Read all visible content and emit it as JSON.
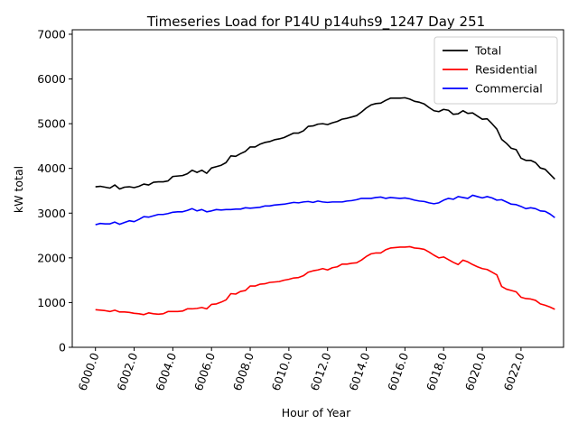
{
  "chart_data": {
    "type": "line",
    "title": "Timeseries Load for P14U p14uhs9_1247  Day 251",
    "xlabel": "Hour of Year",
    "ylabel": "kW total",
    "xlim": [
      5998.8,
      6024.2
    ],
    "ylim": [
      0,
      7100
    ],
    "x_ticks": [
      6000,
      6002,
      6004,
      6006,
      6008,
      6010,
      6012,
      6014,
      6016,
      6018,
      6020,
      6022
    ],
    "x_tick_labels": [
      "6000.0",
      "6002.0",
      "6004.0",
      "6006.0",
      "6008.0",
      "6010.0",
      "6012.0",
      "6014.0",
      "6016.0",
      "6018.0",
      "6020.0",
      "6022.0"
    ],
    "y_ticks": [
      0,
      1000,
      2000,
      3000,
      4000,
      5000,
      6000,
      7000
    ],
    "y_tick_labels": [
      "0",
      "1000",
      "2000",
      "3000",
      "4000",
      "5000",
      "6000",
      "7000"
    ],
    "grid": false,
    "legend_position": "top-right",
    "x": [
      6000.0,
      6000.25,
      6000.5,
      6000.75,
      6001.0,
      6001.25,
      6001.5,
      6001.75,
      6002.0,
      6002.25,
      6002.5,
      6002.75,
      6003.0,
      6003.25,
      6003.5,
      6003.75,
      6004.0,
      6004.25,
      6004.5,
      6004.75,
      6005.0,
      6005.25,
      6005.5,
      6005.75,
      6006.0,
      6006.25,
      6006.5,
      6006.75,
      6007.0,
      6007.25,
      6007.5,
      6007.75,
      6008.0,
      6008.25,
      6008.5,
      6008.75,
      6009.0,
      6009.25,
      6009.5,
      6009.75,
      6010.0,
      6010.25,
      6010.5,
      6010.75,
      6011.0,
      6011.25,
      6011.5,
      6011.75,
      6012.0,
      6012.25,
      6012.5,
      6012.75,
      6013.0,
      6013.25,
      6013.5,
      6013.75,
      6014.0,
      6014.25,
      6014.5,
      6014.75,
      6015.0,
      6015.25,
      6015.5,
      6015.75,
      6016.0,
      6016.25,
      6016.5,
      6016.75,
      6017.0,
      6017.25,
      6017.5,
      6017.75,
      6018.0,
      6018.25,
      6018.5,
      6018.75,
      6019.0,
      6019.25,
      6019.5,
      6019.75,
      6020.0,
      6020.25,
      6020.5,
      6020.75,
      6021.0,
      6021.25,
      6021.5,
      6021.75,
      6022.0,
      6022.25,
      6022.5,
      6022.75,
      6023.0,
      6023.25,
      6023.5,
      6023.75
    ],
    "series": [
      {
        "name": "Total",
        "color": "#000000",
        "values": [
          3590,
          3600,
          3580,
          3560,
          3630,
          3540,
          3580,
          3590,
          3570,
          3600,
          3650,
          3630,
          3690,
          3700,
          3700,
          3720,
          3820,
          3830,
          3840,
          3880,
          3960,
          3910,
          3960,
          3890,
          4010,
          4040,
          4070,
          4130,
          4280,
          4270,
          4330,
          4380,
          4480,
          4480,
          4540,
          4580,
          4600,
          4640,
          4660,
          4690,
          4740,
          4790,
          4790,
          4840,
          4940,
          4950,
          4990,
          5000,
          4980,
          5020,
          5050,
          5100,
          5120,
          5150,
          5180,
          5260,
          5350,
          5420,
          5450,
          5460,
          5520,
          5570,
          5570,
          5570,
          5580,
          5550,
          5500,
          5480,
          5440,
          5360,
          5290,
          5270,
          5320,
          5300,
          5210,
          5220,
          5290,
          5230,
          5240,
          5170,
          5100,
          5110,
          5000,
          4880,
          4650,
          4560,
          4450,
          4420,
          4230,
          4180,
          4180,
          4130,
          4010,
          3980,
          3870,
          3760
        ]
      },
      {
        "name": "Residential",
        "color": "#ff0000",
        "values": [
          840,
          830,
          820,
          800,
          830,
          790,
          790,
          780,
          760,
          750,
          730,
          770,
          750,
          740,
          750,
          800,
          800,
          800,
          810,
          860,
          860,
          870,
          890,
          860,
          960,
          970,
          1010,
          1060,
          1200,
          1190,
          1250,
          1270,
          1370,
          1370,
          1410,
          1420,
          1450,
          1460,
          1470,
          1500,
          1520,
          1550,
          1560,
          1600,
          1680,
          1710,
          1730,
          1760,
          1730,
          1780,
          1800,
          1860,
          1860,
          1880,
          1890,
          1950,
          2030,
          2090,
          2110,
          2110,
          2180,
          2220,
          2230,
          2240,
          2240,
          2250,
          2220,
          2210,
          2190,
          2130,
          2060,
          2000,
          2020,
          1960,
          1900,
          1850,
          1950,
          1910,
          1850,
          1800,
          1760,
          1740,
          1680,
          1620,
          1360,
          1300,
          1270,
          1240,
          1120,
          1090,
          1080,
          1050,
          970,
          940,
          900,
          850
        ]
      },
      {
        "name": "Commercial",
        "color": "#0000ff",
        "values": [
          2740,
          2770,
          2760,
          2760,
          2800,
          2750,
          2790,
          2830,
          2810,
          2860,
          2920,
          2910,
          2940,
          2970,
          2970,
          2990,
          3020,
          3030,
          3030,
          3060,
          3100,
          3050,
          3080,
          3030,
          3050,
          3080,
          3070,
          3080,
          3080,
          3090,
          3090,
          3120,
          3110,
          3120,
          3130,
          3160,
          3160,
          3180,
          3190,
          3200,
          3220,
          3240,
          3230,
          3250,
          3260,
          3240,
          3270,
          3250,
          3240,
          3250,
          3250,
          3250,
          3270,
          3280,
          3300,
          3330,
          3330,
          3330,
          3350,
          3360,
          3330,
          3350,
          3340,
          3330,
          3340,
          3320,
          3290,
          3270,
          3260,
          3230,
          3210,
          3230,
          3290,
          3330,
          3310,
          3370,
          3350,
          3330,
          3400,
          3370,
          3340,
          3370,
          3340,
          3290,
          3300,
          3250,
          3200,
          3190,
          3150,
          3100,
          3120,
          3100,
          3050,
          3040,
          2980,
          2900
        ]
      }
    ]
  }
}
